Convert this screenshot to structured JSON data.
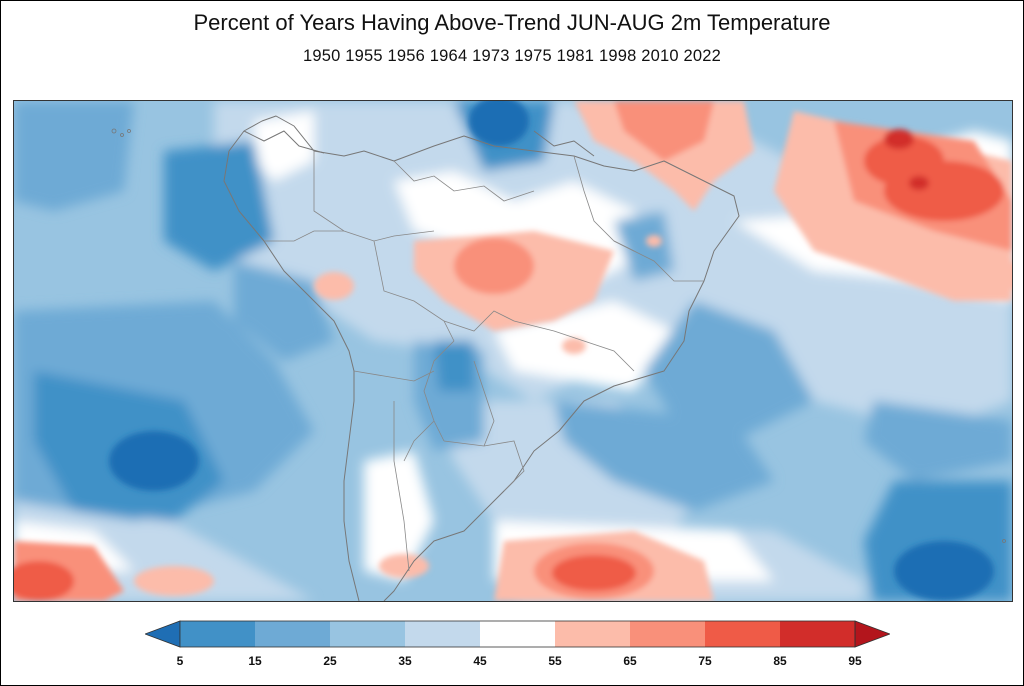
{
  "title": "Percent of Years Having Above-Trend JUN-AUG 2m Temperature",
  "subtitle": "1950 1955 1956 1964 1973 1975 1981 1998 2010 2022",
  "colorbar": {
    "ticks": [
      "5",
      "15",
      "25",
      "35",
      "45",
      "55",
      "65",
      "75",
      "85",
      "95"
    ],
    "colors": [
      "#1f6eb4",
      "#4191c7",
      "#6eaad5",
      "#98c4e1",
      "#c3d9ec",
      "#ffffff",
      "#fcbcaa",
      "#f9907a",
      "#ef5b47",
      "#d22d2a",
      "#b3151c"
    ]
  }
}
